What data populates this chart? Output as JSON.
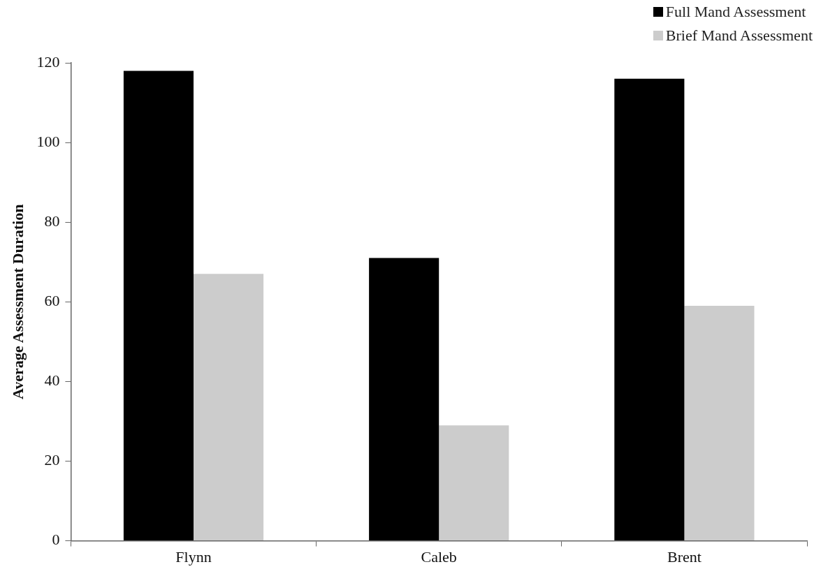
{
  "chart_data": {
    "type": "bar",
    "ylabel": "Average Assessment Duration",
    "categories": [
      "Flynn",
      "Caleb",
      "Brent"
    ],
    "series": [
      {
        "name": "Full Mand Assessment",
        "color": "#000000",
        "values": [
          118,
          71,
          116
        ]
      },
      {
        "name": "Brief Mand Assessment",
        "color": "#cccccc",
        "values": [
          67,
          29,
          59
        ]
      }
    ],
    "ylim": [
      0,
      120
    ],
    "yticks": [
      0,
      20,
      40,
      60,
      80,
      100,
      120
    ],
    "grid": false,
    "legend": "top right"
  }
}
